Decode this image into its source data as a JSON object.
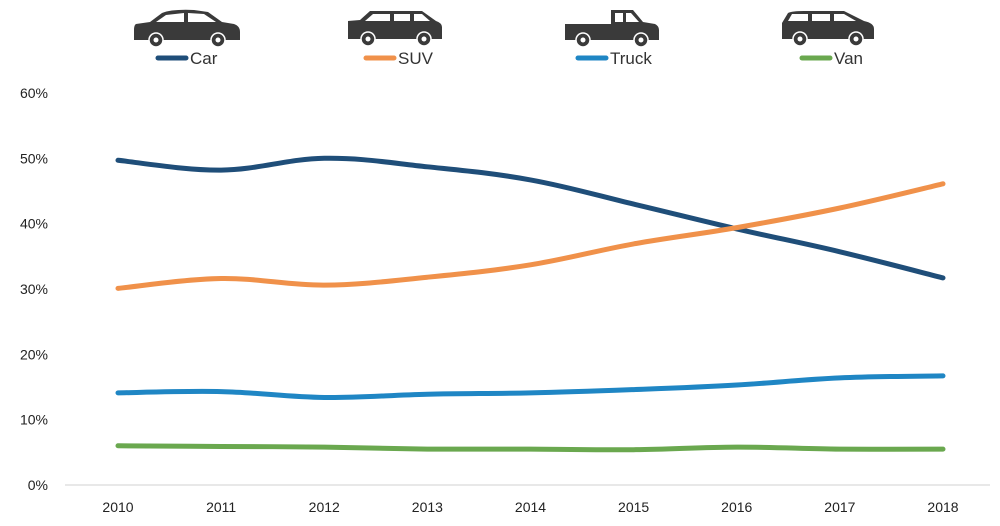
{
  "chart_data": {
    "type": "line",
    "title": "",
    "xlabel": "",
    "ylabel": "",
    "categories": [
      "2010",
      "2011",
      "2012",
      "2013",
      "2014",
      "2015",
      "2016",
      "2017",
      "2018"
    ],
    "ylim": [
      0,
      60
    ],
    "yticks": [
      0,
      10,
      20,
      30,
      40,
      50,
      60
    ],
    "ytick_labels": [
      "0%",
      "10%",
      "20%",
      "30%",
      "40%",
      "50%",
      "60%"
    ],
    "grid": false,
    "legend_position": "top",
    "series": [
      {
        "name": "Car",
        "color": "#1f4e79",
        "icon": "car-icon",
        "values": [
          49.7,
          48.2,
          50.0,
          48.7,
          46.7,
          43.0,
          39.2,
          35.7,
          31.7
        ]
      },
      {
        "name": "SUV",
        "color": "#f0914a",
        "icon": "suv-icon",
        "values": [
          30.1,
          31.6,
          30.6,
          31.8,
          33.7,
          36.9,
          39.4,
          42.4,
          46.1
        ]
      },
      {
        "name": "Truck",
        "color": "#1f86c4",
        "icon": "truck-icon",
        "values": [
          14.1,
          14.3,
          13.4,
          13.9,
          14.1,
          14.6,
          15.3,
          16.4,
          16.7
        ]
      },
      {
        "name": "Van",
        "color": "#6aa84f",
        "icon": "minivan-icon",
        "values": [
          6.0,
          5.9,
          5.8,
          5.5,
          5.5,
          5.4,
          5.8,
          5.5,
          5.5
        ]
      }
    ]
  }
}
